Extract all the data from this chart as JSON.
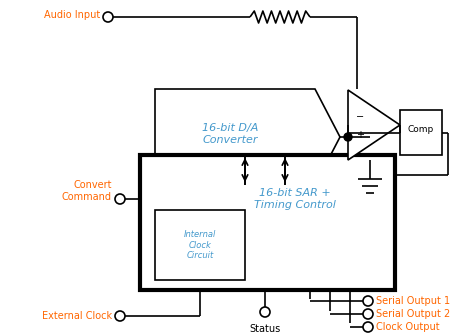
{
  "bg_color": "#ffffff",
  "line_color": "#000000",
  "text_color_label": "#ff6600",
  "text_color_block": "#4499cc",
  "thin_lw": 1.2,
  "thick_lw": 3.0,
  "audio_input_label": "Audio Input",
  "convert_command_label": "Convert\nCommand",
  "external_clock_label": "External Clock",
  "status_label": "Status",
  "serial_output1_label": "Serial Output 1",
  "serial_output2_label": "Serial Output 2",
  "clock_output_label": "Clock Output",
  "dac_label": "16-bit D/A\nConverter",
  "sar_label": "16-bit SAR +\nTiming Control",
  "clk_label": "Internal\nClock\nCircuit",
  "comp_label": "Comp",
  "font_size_label": 7.0,
  "font_size_block": 8.0,
  "font_size_comp": 6.5
}
